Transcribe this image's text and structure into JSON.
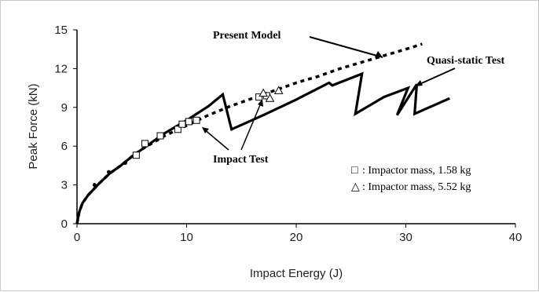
{
  "chart_data": {
    "type": "line",
    "xlabel": "Impact Energy (J)",
    "ylabel": "Peak Force (kN)",
    "xlim": [
      0,
      40
    ],
    "ylim": [
      0,
      15
    ],
    "x_ticks": [
      0,
      10,
      20,
      30,
      40
    ],
    "y_ticks": [
      0,
      3,
      6,
      9,
      12,
      15
    ],
    "grid": false,
    "legend_position": "bottom-right",
    "colors": {
      "lines": "#000000",
      "markers": "#000000"
    },
    "series": [
      {
        "name": "Present Model",
        "style": "dashed",
        "points": [
          [
            0,
            0
          ],
          [
            0.2,
            0.9
          ],
          [
            0.5,
            1.6
          ],
          [
            1,
            2.2
          ],
          [
            2,
            3.1
          ],
          [
            3,
            3.9
          ],
          [
            4,
            4.5
          ],
          [
            5,
            5.2
          ],
          [
            6,
            5.8
          ],
          [
            7,
            6.3
          ],
          [
            8,
            6.8
          ],
          [
            10,
            7.6
          ],
          [
            12,
            8.4
          ],
          [
            14,
            9.1
          ],
          [
            16,
            9.7
          ],
          [
            18,
            10.3
          ],
          [
            20,
            10.9
          ],
          [
            22,
            11.4
          ],
          [
            24,
            12.0
          ],
          [
            26,
            12.5
          ],
          [
            28,
            13.0
          ],
          [
            30,
            13.5
          ],
          [
            31.5,
            13.9
          ]
        ]
      },
      {
        "name": "Quasi-static Test",
        "style": "solid",
        "points": [
          [
            0,
            0
          ],
          [
            0.2,
            0.9
          ],
          [
            0.5,
            1.6
          ],
          [
            1,
            2.2
          ],
          [
            2,
            3.1
          ],
          [
            3,
            3.9
          ],
          [
            4,
            4.5
          ],
          [
            5,
            5.2
          ],
          [
            6,
            5.8
          ],
          [
            7,
            6.4
          ],
          [
            8,
            7.0
          ],
          [
            10,
            8.0
          ],
          [
            12,
            9.1
          ],
          [
            13.3,
            10.0
          ],
          [
            14.1,
            7.3
          ],
          [
            17,
            8.4
          ],
          [
            20,
            9.6
          ],
          [
            23,
            10.9
          ],
          [
            23.3,
            10.7
          ],
          [
            26,
            11.6
          ],
          [
            25.4,
            8.5
          ],
          [
            28,
            9.8
          ],
          [
            30.2,
            10.5
          ],
          [
            29.2,
            8.4
          ],
          [
            31,
            10.8
          ],
          [
            30.8,
            8.5
          ],
          [
            34,
            9.7
          ]
        ]
      },
      {
        "name": "Impactor mass, 1.58 kg",
        "marker": "square",
        "points": [
          [
            5.4,
            5.3
          ],
          [
            6.2,
            6.2
          ],
          [
            7.6,
            6.8
          ],
          [
            9.2,
            7.3
          ],
          [
            9.6,
            7.7
          ],
          [
            10.2,
            7.9
          ],
          [
            10.9,
            8.0
          ],
          [
            16.6,
            9.8
          ],
          [
            17.3,
            9.9
          ]
        ]
      },
      {
        "name": "Impactor mass, 5.52 kg",
        "marker": "triangle",
        "points": [
          [
            17.0,
            10.1
          ],
          [
            17.6,
            9.7
          ],
          [
            18.4,
            10.3
          ]
        ]
      }
    ],
    "small_points": [
      [
        1.6,
        3.0
      ],
      [
        2.9,
        4.0
      ],
      [
        4.4,
        4.7
      ]
    ],
    "annotations": {
      "present_model": "Present Model",
      "quasi_static": "Quasi-static Test",
      "impact_test": "Impact Test"
    },
    "legend": [
      {
        "marker": "□",
        "label": ": Impactor mass, 1.58 kg"
      },
      {
        "marker": "△",
        "label": ": Impactor mass, 5.52 kg"
      }
    ]
  }
}
